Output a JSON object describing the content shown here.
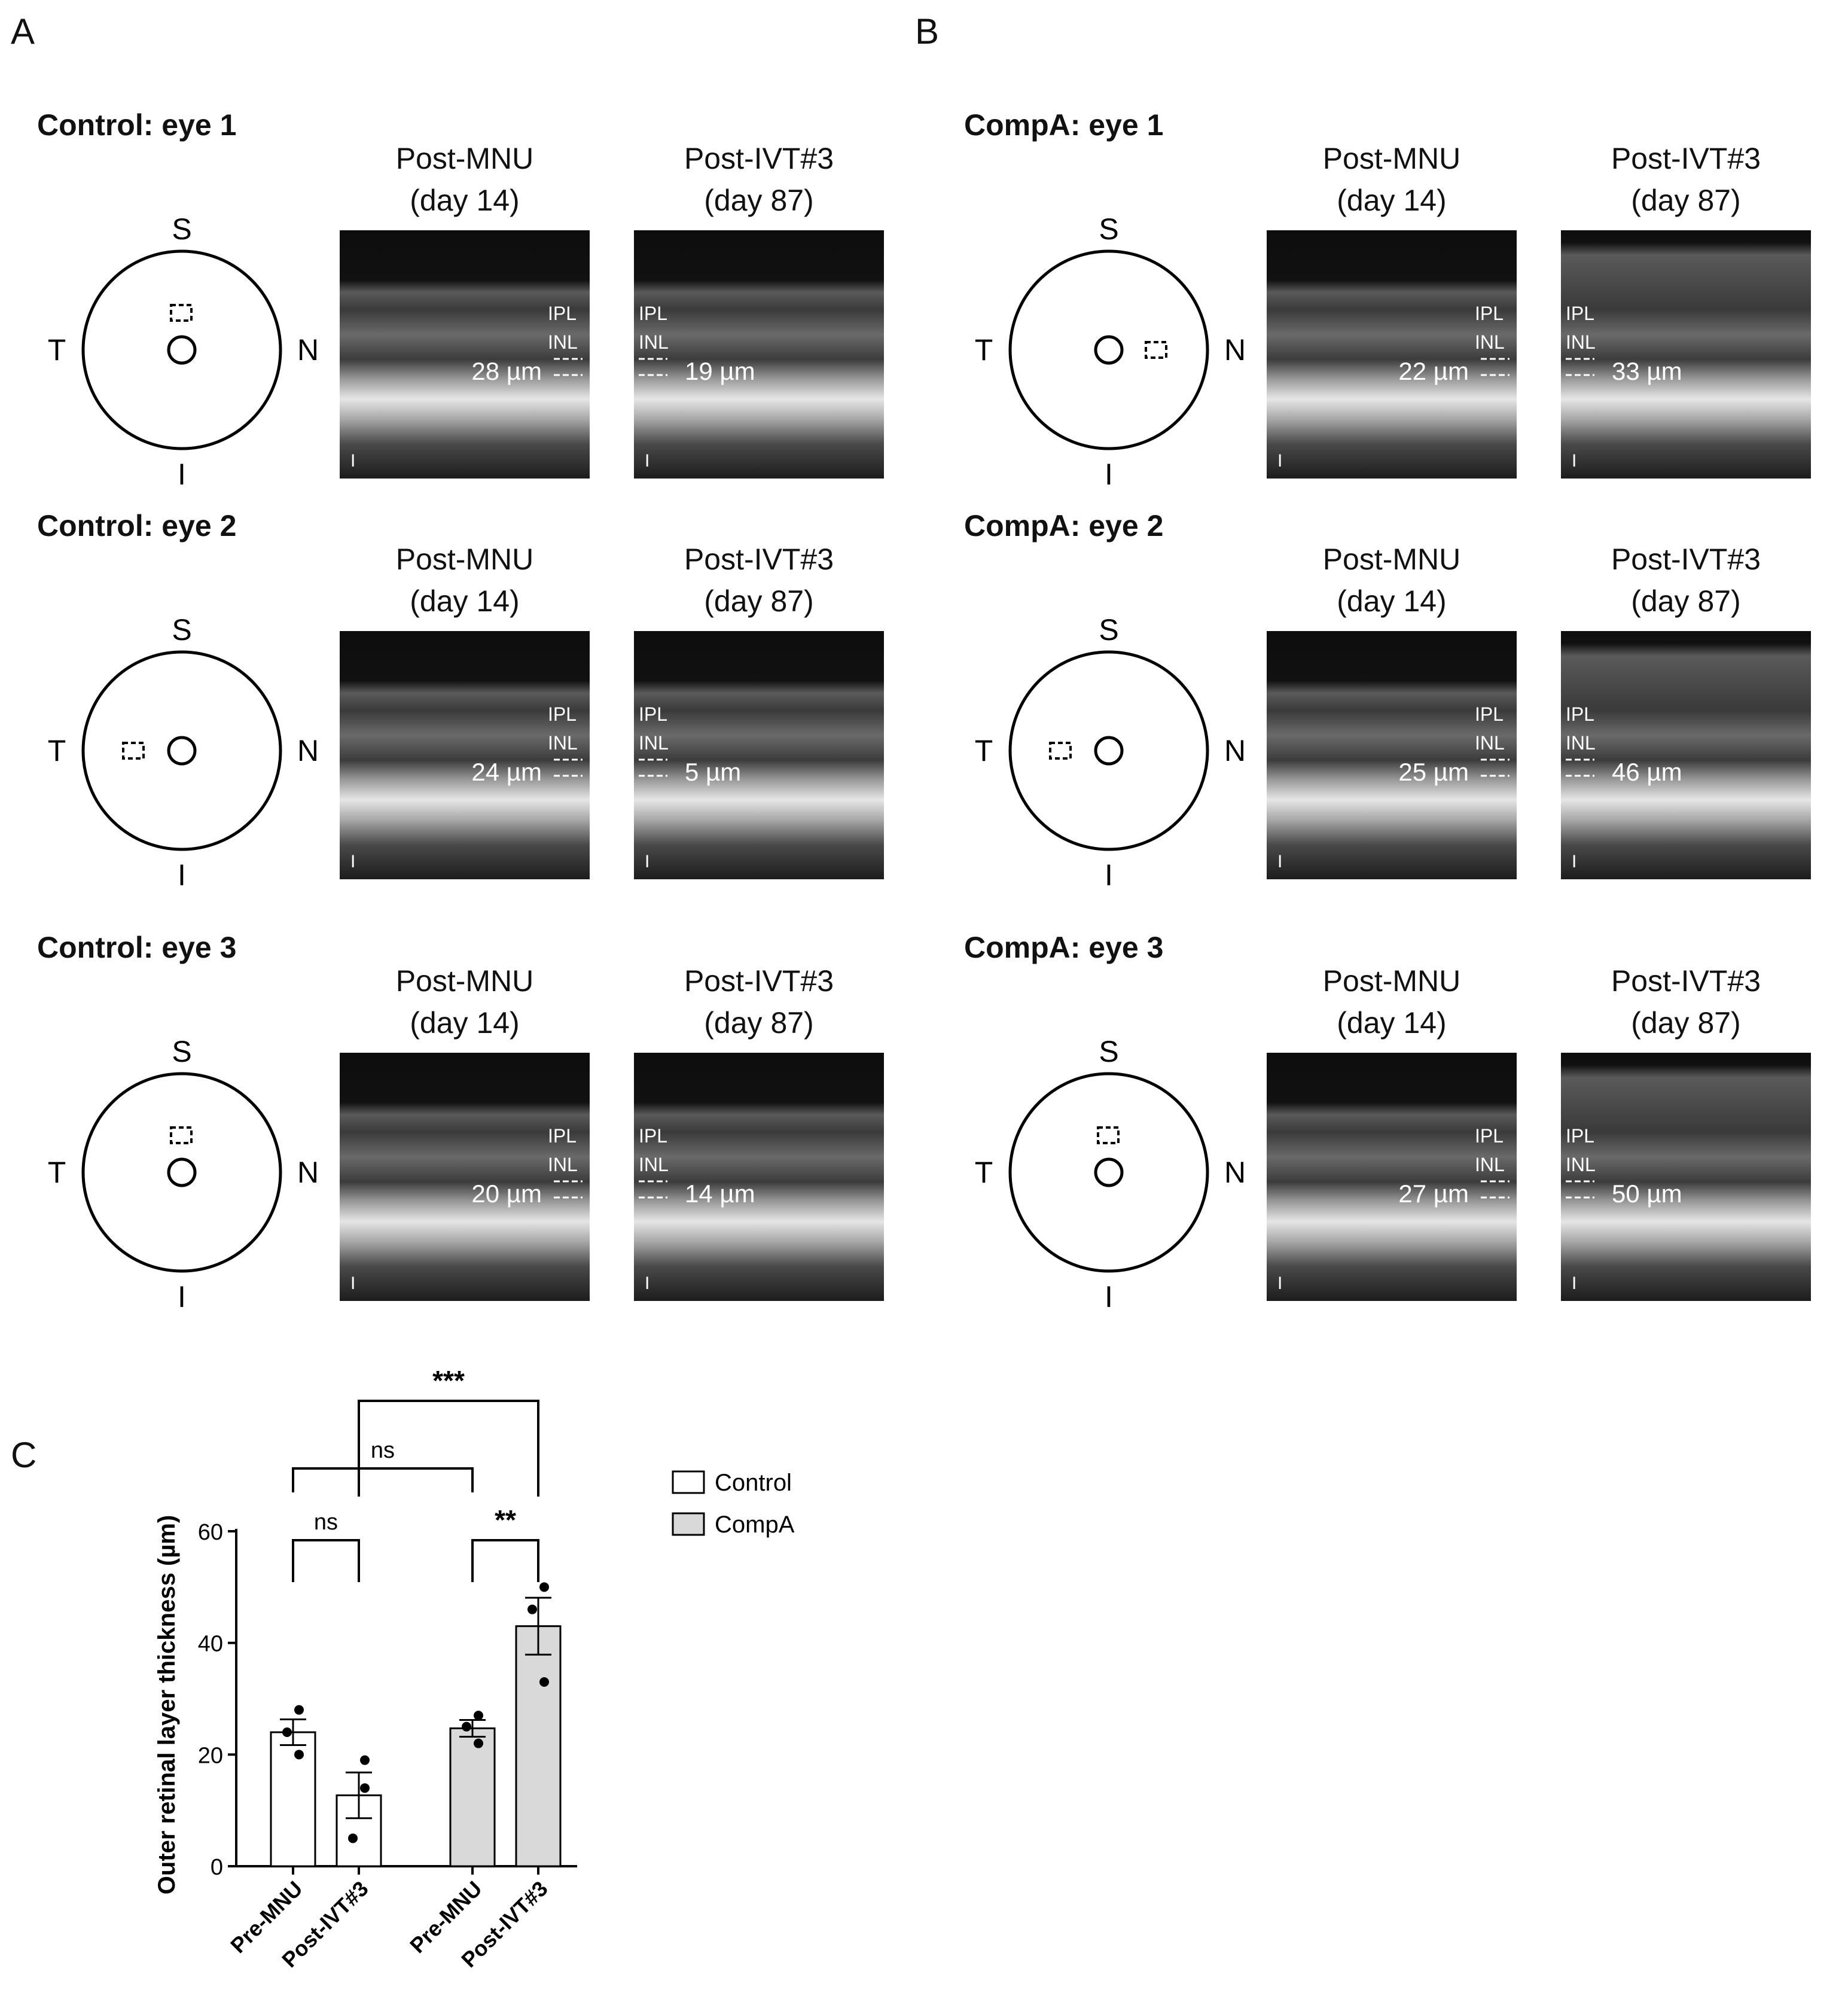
{
  "panels": {
    "A": "A",
    "B": "B",
    "C": "C"
  },
  "groups": [
    {
      "id": "A",
      "eyes": [
        {
          "title": "Control: eye 1",
          "box": "top",
          "thickness_pre": "28 µm",
          "thickness_post": "19 µm"
        },
        {
          "title": "Control: eye 2",
          "box": "left",
          "thickness_pre": "24 µm",
          "thickness_post": "5 µm"
        },
        {
          "title": "Control: eye 3",
          "box": "top",
          "thickness_pre": "20 µm",
          "thickness_post": "14 µm"
        }
      ]
    },
    {
      "id": "B",
      "eyes": [
        {
          "title": "CompA: eye 1",
          "box": "right",
          "thickness_pre": "22 µm",
          "thickness_post": "33 µm"
        },
        {
          "title": "CompA: eye 2",
          "box": "left",
          "thickness_pre": "25 µm",
          "thickness_post": "46 µm"
        },
        {
          "title": "CompA: eye 3",
          "box": "top",
          "thickness_pre": "27 µm",
          "thickness_post": "50 µm"
        }
      ]
    }
  ],
  "image_titles": {
    "pre_line1": "Post-MNU",
    "pre_line2": "(day 14)",
    "post_line1": "Post-IVT#3",
    "post_line2": "(day 87)"
  },
  "layer_labels": {
    "ipl": "IPL",
    "inl": "INL",
    "scale": "I"
  },
  "orientation": {
    "superior": "S",
    "inferior": "I",
    "temporal": "T",
    "nasal": "N"
  },
  "chart_data": {
    "type": "bar",
    "ylabel": "Outer retinal layer thickness (µm)",
    "ylim": [
      0,
      60
    ],
    "yticks": [
      0,
      20,
      40,
      60
    ],
    "categories": [
      "Pre-MNU",
      "Post-IVT#3",
      "Pre-MNU",
      "Post-IVT#3"
    ],
    "series": [
      {
        "name": "Control",
        "color": "#ffffff",
        "bars": [
          0,
          1
        ]
      },
      {
        "name": "CompA",
        "color": "#d9d9d9",
        "bars": [
          2,
          3
        ]
      }
    ],
    "values": [
      24,
      12.7,
      24.7,
      43
    ],
    "errors": [
      2.3,
      4.1,
      1.5,
      5.1
    ],
    "points": [
      [
        28,
        24,
        20
      ],
      [
        19,
        5,
        14
      ],
      [
        22,
        25,
        27
      ],
      [
        33,
        46,
        50
      ]
    ],
    "significance": [
      {
        "from": 0,
        "to": 1,
        "label": "ns"
      },
      {
        "from": 2,
        "to": 3,
        "label": "**"
      },
      {
        "from": 0,
        "to": 2,
        "label": "ns"
      },
      {
        "from": 1,
        "to": 3,
        "label": "***"
      }
    ]
  }
}
